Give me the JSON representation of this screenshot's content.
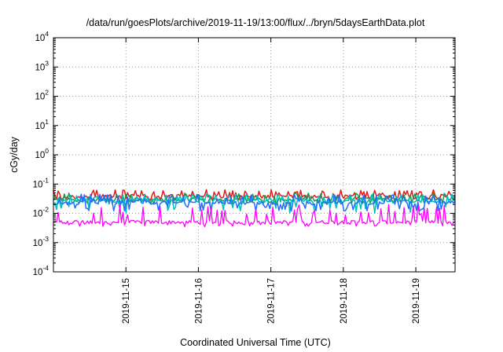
{
  "chart_data": {
    "type": "line",
    "title": "/data/run/goesPlots/archive/2019-11-19/13:00/flux/../bryn/5daysEarthData.plot",
    "xlabel": "Coordinated Universal Time (UTC)",
    "ylabel": "cGy/day",
    "yscale": "log",
    "ylim": [
      0.0001,
      10000
    ],
    "y_ticks": [
      {
        "base": "10",
        "exp": "-4"
      },
      {
        "base": "10",
        "exp": "-3"
      },
      {
        "base": "10",
        "exp": "-2"
      },
      {
        "base": "10",
        "exp": "-1"
      },
      {
        "base": "10",
        "exp": "0"
      },
      {
        "base": "10",
        "exp": "1"
      },
      {
        "base": "10",
        "exp": "2"
      },
      {
        "base": "10",
        "exp": "3"
      },
      {
        "base": "10",
        "exp": "4"
      }
    ],
    "xlim": [
      "2019-11-14T00:00",
      "2019-11-19T13:00"
    ],
    "x_ticks": [
      "2019-11-15",
      "2019-11-16",
      "2019-11-17",
      "2019-11-18",
      "2019-11-19"
    ],
    "grid": true,
    "legend": "none",
    "series": [
      {
        "color": "#e41a1c",
        "x": [
          "2019-11-14T00:00",
          "2019-11-15T00:00",
          "2019-11-16T00:00",
          "2019-11-17T00:00",
          "2019-11-18T00:00",
          "2019-11-19T00:00",
          "2019-11-19T13:00"
        ],
        "values": [
          0.035,
          0.04,
          0.038,
          0.036,
          0.037,
          0.038,
          0.04
        ],
        "spike_high": 0.065,
        "spike_low": 0.028
      },
      {
        "color": "#1a9850",
        "x": [
          "2019-11-14T00:00",
          "2019-11-15T00:00",
          "2019-11-16T00:00",
          "2019-11-17T00:00",
          "2019-11-18T00:00",
          "2019-11-19T00:00",
          "2019-11-19T13:00"
        ],
        "values": [
          0.028,
          0.03,
          0.03,
          0.029,
          0.03,
          0.03,
          0.03
        ],
        "spike_high": 0.05,
        "spike_low": 0.02
      },
      {
        "color": "#00bfbf",
        "x": [
          "2019-11-14T00:00",
          "2019-11-15T00:00",
          "2019-11-16T00:00",
          "2019-11-17T00:00",
          "2019-11-18T00:00",
          "2019-11-19T00:00",
          "2019-11-19T13:00"
        ],
        "values": [
          0.025,
          0.027,
          0.026,
          0.026,
          0.027,
          0.026,
          0.026
        ],
        "spike_high": 0.045,
        "spike_low": 0.01
      },
      {
        "color": "#1f6fff",
        "x": [
          "2019-11-14T00:00",
          "2019-11-15T00:00",
          "2019-11-16T00:00",
          "2019-11-17T00:00",
          "2019-11-18T00:00",
          "2019-11-19T00:00",
          "2019-11-19T13:00"
        ],
        "values": [
          0.022,
          0.024,
          0.023,
          0.022,
          0.023,
          0.023,
          0.024
        ],
        "spike_high": 0.045,
        "spike_low": 0.012
      },
      {
        "color": "#ff00ff",
        "x": [
          "2019-11-14T00:00",
          "2019-11-15T00:00",
          "2019-11-16T00:00",
          "2019-11-17T00:00",
          "2019-11-18T00:00",
          "2019-11-19T00:00",
          "2019-11-19T13:00"
        ],
        "values": [
          0.005,
          0.005,
          0.005,
          0.005,
          0.005,
          0.005,
          0.005
        ],
        "spike_high": 0.02,
        "spike_low": 0.0035
      }
    ]
  }
}
